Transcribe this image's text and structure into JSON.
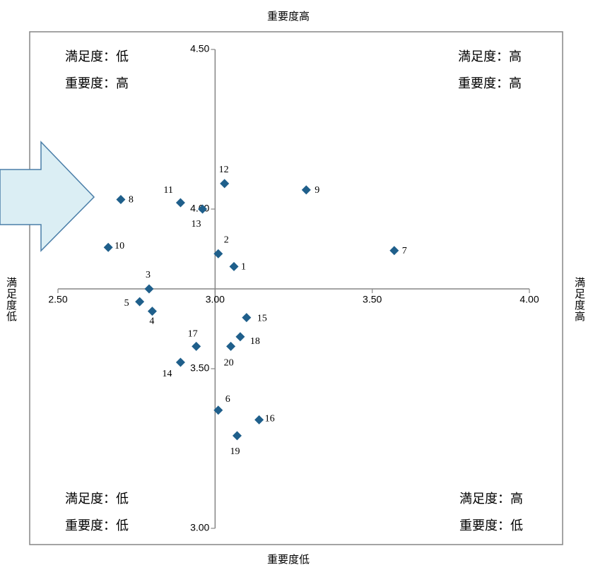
{
  "outer_labels": {
    "top": "重要度高",
    "bottom": "重要度低",
    "left": "満足度低",
    "right": "満足度高"
  },
  "quadrants": {
    "top_left": [
      "満足度：低",
      "重要度：高"
    ],
    "top_right": [
      "満足度：高",
      "重要度：高"
    ],
    "bottom_left": [
      "満足度：低",
      "重要度：低"
    ],
    "bottom_right": [
      "満足度：高",
      "重要度：低"
    ]
  },
  "colors": {
    "marker": "#1f5f8b",
    "axis": "#868686",
    "frame": "#868686",
    "arrow_fill": "#dbeef4",
    "arrow_stroke": "#4a7ea8"
  },
  "chart_data": {
    "type": "scatter",
    "xlim": [
      2.5,
      4.0
    ],
    "ylim": [
      3.0,
      4.5
    ],
    "x_axis_crosses_y_at": 3.75,
    "y_axis_crosses_x_at": 3.0,
    "x_ticks": [
      "2.50",
      "3.00",
      "3.50",
      "4.00"
    ],
    "y_ticks": [
      "3.00",
      "3.50",
      "4.00",
      "4.50"
    ],
    "grid": false,
    "points": [
      {
        "label": "1",
        "x": 3.06,
        "y": 3.82
      },
      {
        "label": "2",
        "x": 3.01,
        "y": 3.86
      },
      {
        "label": "3",
        "x": 2.79,
        "y": 3.75
      },
      {
        "label": "4",
        "x": 2.8,
        "y": 3.68
      },
      {
        "label": "5",
        "x": 2.76,
        "y": 3.71
      },
      {
        "label": "6",
        "x": 3.01,
        "y": 3.37
      },
      {
        "label": "7",
        "x": 3.57,
        "y": 3.87
      },
      {
        "label": "8",
        "x": 2.7,
        "y": 4.03
      },
      {
        "label": "9",
        "x": 3.29,
        "y": 4.06
      },
      {
        "label": "10",
        "x": 2.66,
        "y": 3.88
      },
      {
        "label": "11",
        "x": 2.89,
        "y": 4.02
      },
      {
        "label": "12",
        "x": 3.03,
        "y": 4.08
      },
      {
        "label": "13",
        "x": 2.96,
        "y": 4.0
      },
      {
        "label": "14",
        "x": 2.89,
        "y": 3.52
      },
      {
        "label": "15",
        "x": 3.1,
        "y": 3.66
      },
      {
        "label": "16",
        "x": 3.14,
        "y": 3.34
      },
      {
        "label": "17",
        "x": 2.94,
        "y": 3.57
      },
      {
        "label": "18",
        "x": 3.08,
        "y": 3.6
      },
      {
        "label": "19",
        "x": 3.07,
        "y": 3.29
      },
      {
        "label": "20",
        "x": 3.05,
        "y": 3.57
      }
    ]
  }
}
